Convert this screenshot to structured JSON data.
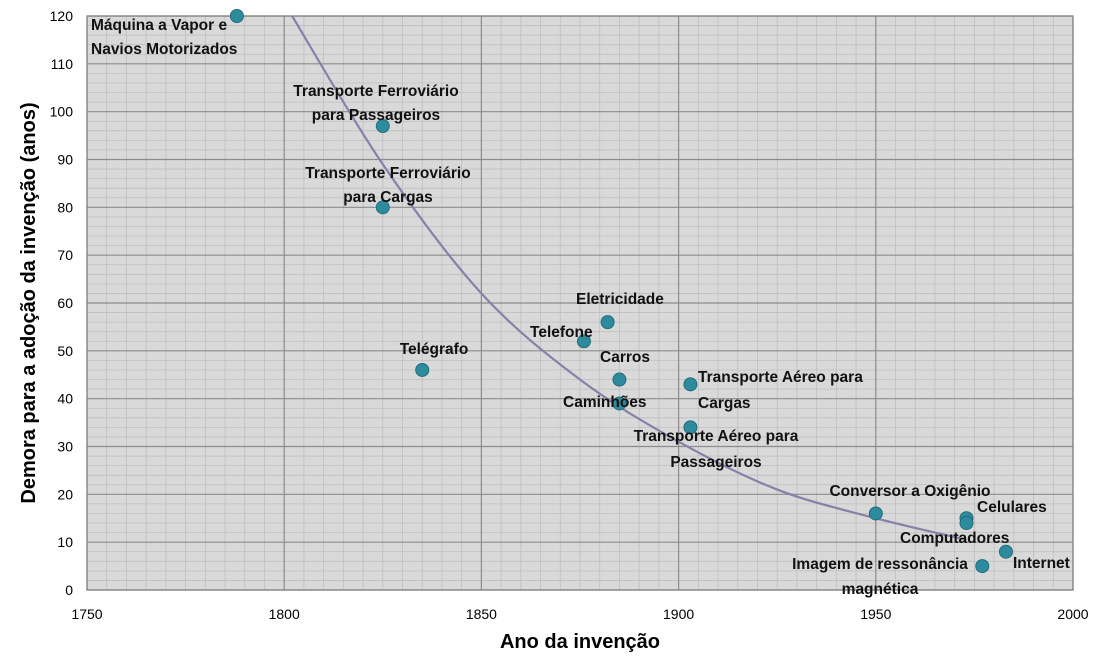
{
  "chart_data": {
    "type": "scatter",
    "title": "",
    "xlabel": "Ano  da invenção",
    "ylabel": "Demora para a adoção da invenção  (anos)",
    "xlim": [
      1750,
      2000
    ],
    "ylim": [
      0,
      120
    ],
    "x_ticks": [
      1750,
      1800,
      1850,
      1900,
      1950,
      2000
    ],
    "y_ticks": [
      0,
      10,
      20,
      30,
      40,
      50,
      60,
      70,
      80,
      90,
      100,
      110,
      120
    ],
    "grid": true,
    "minor_grid": true,
    "legend": "none",
    "colors": {
      "background": "#d9d9d9",
      "major_grid": "#8c8c8c",
      "minor_grid": "#bfbfbf",
      "point": "#2e8b9e",
      "trendline": "#8a7fa8"
    },
    "trendline": {
      "type": "exponential",
      "points": [
        {
          "x": 1802,
          "y": 120
        },
        {
          "x": 1825,
          "y": 89
        },
        {
          "x": 1850,
          "y": 62
        },
        {
          "x": 1875,
          "y": 44
        },
        {
          "x": 1900,
          "y": 31
        },
        {
          "x": 1925,
          "y": 21
        },
        {
          "x": 1950,
          "y": 15
        },
        {
          "x": 1973,
          "y": 10.5
        }
      ]
    },
    "points": [
      {
        "x": 1788,
        "y": 120,
        "label": [
          "Máquina a Vapor e",
          "Navios Motorizados"
        ]
      },
      {
        "x": 1825,
        "y": 97,
        "label": [
          "Transporte Ferroviário",
          "para Passageiros"
        ]
      },
      {
        "x": 1825,
        "y": 80,
        "label": [
          "Transporte Ferroviário",
          "para Cargas"
        ]
      },
      {
        "x": 1835,
        "y": 46,
        "label": [
          "Telégrafo"
        ]
      },
      {
        "x": 1876,
        "y": 52,
        "label": [
          "Telefone"
        ]
      },
      {
        "x": 1882,
        "y": 56,
        "label": [
          "Eletricidade"
        ]
      },
      {
        "x": 1885,
        "y": 44,
        "label": [
          "Carros"
        ]
      },
      {
        "x": 1885,
        "y": 39,
        "label": [
          "Caminhões"
        ]
      },
      {
        "x": 1903,
        "y": 43,
        "label": [
          "Transporte Aéreo para",
          "Cargas"
        ]
      },
      {
        "x": 1903,
        "y": 34,
        "label": [
          "Transporte Aéreo para",
          "Passageiros"
        ]
      },
      {
        "x": 1950,
        "y": 16,
        "label": [
          "Conversor a Oxigênio"
        ]
      },
      {
        "x": 1973,
        "y": 15,
        "label": [
          "Celulares"
        ]
      },
      {
        "x": 1973,
        "y": 14,
        "label": [
          "Computadores"
        ]
      },
      {
        "x": 1977,
        "y": 5,
        "label": [
          "Imagem de ressonância",
          "magnética"
        ]
      },
      {
        "x": 1983,
        "y": 8,
        "label": [
          "Internet"
        ]
      }
    ]
  }
}
